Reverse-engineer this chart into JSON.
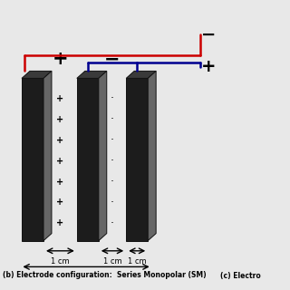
{
  "bg_color": "#e8e8e8",
  "electrode_dark": "#1c1c1c",
  "electrode_mid": "#3a3a3a",
  "electrode_light": "#666666",
  "wire_red": "#cc0000",
  "wire_blue": "#000090",
  "title": "(b) Electrode configuration:  Series Monopolar (SM)",
  "title2": "(c) Electro",
  "ep": [
    0.075,
    0.265,
    0.435
  ],
  "ew": 0.075,
  "eh": 0.56,
  "eb": 0.17,
  "pox": 0.028,
  "poy": 0.025
}
